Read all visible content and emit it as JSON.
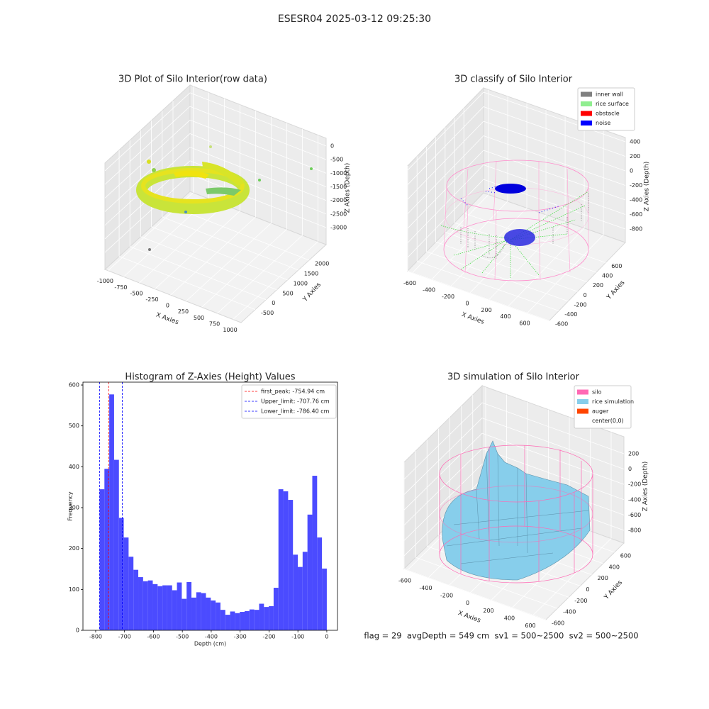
{
  "suptitle": "ESESR04 2025-03-12 09:25:30",
  "footer": "flag = 29  avgDepth = 549 cm  sv1 = 500~2500  sv2 = 500~2500",
  "chart_data": [
    {
      "type": "scatter3d",
      "title": "3D Plot of Silo Interior(row data)",
      "xlabel": "X Axies",
      "ylabel": "Y Axies",
      "zlabel": "Z Axies (Depth)",
      "xlim": [
        -1050,
        1130
      ],
      "ylim": [
        -1160,
        2790
      ],
      "zlim": [
        -3626,
        285
      ],
      "xticks": [
        -1000,
        -750,
        -500,
        -250,
        0,
        250,
        500,
        750,
        1000
      ],
      "yticks": [
        -500,
        0,
        500,
        1000,
        1500,
        2000
      ],
      "zticks": [
        -3000,
        -2500,
        -2000,
        -1500,
        -1000,
        -500,
        0
      ]
    },
    {
      "type": "scatter3d",
      "title": "3D classify of Silo Interior",
      "xlabel": "X Axies",
      "ylabel": "Y Axies",
      "zlabel": "Z Axies (Depth)",
      "xlim": [
        -652,
        829
      ],
      "ylim": [
        -600,
        1020
      ],
      "zlim": [
        -985,
        458
      ],
      "xticks": [
        -600,
        -400,
        -200,
        0,
        200,
        400,
        600
      ],
      "yticks": [
        -600,
        -400,
        -200,
        0,
        200,
        400,
        600
      ],
      "zticks": [
        -800,
        -600,
        -400,
        -200,
        0,
        200,
        400
      ],
      "legend": [
        {
          "name": "inner wall",
          "color": "#808080"
        },
        {
          "name": "rice surface",
          "color": "#90ee90"
        },
        {
          "name": "obstacle",
          "color": "#ff0000"
        },
        {
          "name": "noise",
          "color": "#0000ff"
        }
      ],
      "legend_loc": "upper right"
    },
    {
      "type": "histogram",
      "title": "Histogram of Z-Axies (Height) Values",
      "xlabel": "Depth (cm)",
      "ylabel": "Frequency",
      "color": "#4b4bff",
      "bins": [
        -786.4,
        -769.67,
        -752.94,
        -736.2,
        -719.47,
        -702.74,
        -686.01,
        -669.28,
        -652.55,
        -635.81,
        -619.08,
        -602.35,
        -585.62,
        -568.89,
        -552.15,
        -535.42,
        -518.69,
        -501.96,
        -485.23,
        -468.49,
        -451.76,
        -435.03,
        -418.3,
        -401.57,
        -384.83,
        -368.1,
        -351.37,
        -334.64,
        -317.91,
        -301.17,
        -284.44,
        -267.71,
        -250.98,
        -234.25,
        -217.51,
        -200.78,
        -184.05,
        -167.32,
        -150.59,
        -133.86,
        -117.12,
        -100.39,
        -83.66,
        -66.93,
        -50.2,
        -33.46,
        -16.73,
        0
      ],
      "values": [
        345,
        395,
        577,
        417,
        275,
        227,
        180,
        148,
        130,
        120,
        122,
        113,
        108,
        110,
        110,
        98,
        117,
        77,
        118,
        80,
        93,
        91,
        80,
        73,
        68,
        50,
        38,
        46,
        42,
        45,
        47,
        51,
        50,
        65,
        57,
        59,
        104,
        345,
        340,
        319,
        185,
        155,
        192,
        283,
        378,
        227,
        151
      ],
      "xlim": [
        -844,
        37
      ],
      "ylim": [
        0,
        607
      ],
      "xticks": [
        -800,
        -700,
        -600,
        -500,
        -400,
        -300,
        -200,
        -100,
        0
      ],
      "yticks": [
        0,
        100,
        200,
        300,
        400,
        500,
        600
      ],
      "vlines": [
        {
          "name": "first_peak: -754.94 cm",
          "x": -754.94,
          "color": "#ff0000"
        },
        {
          "name": "Upper_limit: -707.76 cm",
          "x": -707.76,
          "color": "#0000ff"
        },
        {
          "name": "Lower_limit: -786.40 cm",
          "x": -786.4,
          "color": "#0000ff"
        }
      ],
      "legend_loc": "upper right"
    },
    {
      "type": "surface3d",
      "title": "3D simulation of Silo Interior",
      "xlabel": "X Axies",
      "ylabel": "Y Axies",
      "zlabel": "Z Axies (Depth)",
      "xlim": [
        -634,
        722
      ],
      "ylim": [
        -600,
        764
      ],
      "zlim": [
        -967,
        422
      ],
      "xticks": [
        -600,
        -400,
        -200,
        0,
        200,
        400,
        600
      ],
      "yticks": [
        -600,
        -400,
        -200,
        0,
        200,
        400,
        600
      ],
      "zticks": [
        -800,
        -600,
        -400,
        -200,
        0,
        200
      ],
      "legend": [
        {
          "name": "silo",
          "color": "#ff69b4"
        },
        {
          "name": "rice simulation",
          "color": "#87ceeb"
        },
        {
          "name": "auger",
          "color": "#ff4500"
        },
        {
          "name": "center(0,0)",
          "color": "#ffffff"
        }
      ],
      "legend_loc": "upper right"
    }
  ]
}
